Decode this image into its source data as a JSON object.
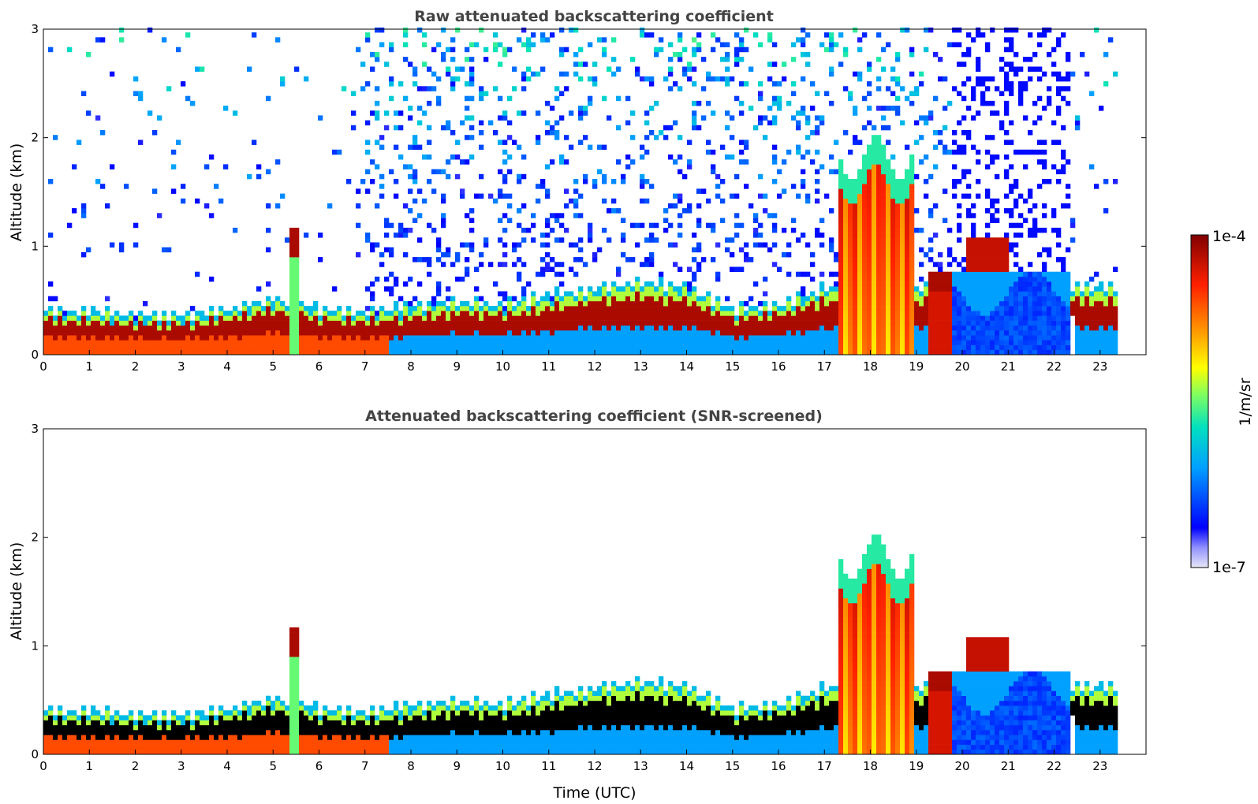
{
  "chart_data": [
    {
      "type": "heatmap",
      "title": "Raw attenuated backscattering coefficient",
      "xlabel": "",
      "ylabel": "Altitude (km)",
      "xlim": [
        0,
        24
      ],
      "ylim": [
        0,
        3
      ],
      "xticks": [
        "0",
        "1",
        "2",
        "3",
        "4",
        "5",
        "6",
        "7",
        "8",
        "9",
        "10",
        "11",
        "12",
        "13",
        "14",
        "15",
        "16",
        "17",
        "18",
        "19",
        "20",
        "21",
        "22",
        "23"
      ],
      "yticks": [
        "0",
        "1",
        "2",
        "3"
      ],
      "data_end_hour": 23.3,
      "screened": false
    },
    {
      "type": "heatmap",
      "title": "Attenuated backscattering coefficient (SNR-screened)",
      "xlabel": "Time (UTC)",
      "ylabel": "Altitude (km)",
      "xlim": [
        0,
        24
      ],
      "ylim": [
        0,
        3
      ],
      "xticks": [
        "0",
        "1",
        "2",
        "3",
        "4",
        "5",
        "6",
        "7",
        "8",
        "9",
        "10",
        "11",
        "12",
        "13",
        "14",
        "15",
        "16",
        "17",
        "18",
        "19",
        "20",
        "21",
        "22",
        "23"
      ],
      "yticks": [
        "0",
        "1",
        "2",
        "3"
      ],
      "data_end_hour": 23.3,
      "screened": true
    }
  ],
  "colorbar": {
    "label": "1/m/sr",
    "max_label": "1e-4",
    "min_label": "1e-7",
    "scale": "log",
    "colormap": [
      "#e8e8f8",
      "#0000ff",
      "#00a0ff",
      "#00e0c0",
      "#80ff60",
      "#ffff00",
      "#ff9000",
      "#ff2000",
      "#800000"
    ]
  },
  "features": [
    {
      "name": "boundary-layer-aerosol",
      "x": [
        0,
        1,
        2,
        3,
        4,
        5,
        6,
        7,
        8,
        9,
        10,
        11,
        12,
        13,
        14,
        15,
        16,
        17
      ],
      "top_km": [
        0.35,
        0.33,
        0.3,
        0.3,
        0.35,
        0.45,
        0.35,
        0.32,
        0.38,
        0.42,
        0.4,
        0.48,
        0.55,
        0.6,
        0.55,
        0.35,
        0.4,
        0.55
      ]
    },
    {
      "name": "plume-5.4h",
      "x_range": [
        5.3,
        5.55
      ],
      "alt_range_km": [
        0,
        1.15
      ]
    },
    {
      "name": "thick-cloud-17.5-18.8h",
      "x_range": [
        17.25,
        18.85
      ],
      "alt_range_km": [
        0,
        1.75
      ]
    },
    {
      "name": "elevated-layer-20-21h",
      "x_range": [
        20.0,
        21.0
      ],
      "alt_range_km": [
        0.7,
        1.05
      ]
    },
    {
      "name": "clear-gap-22.3h",
      "x_range": [
        22.3,
        22.45
      ],
      "alt_range_km": [
        0,
        0.3
      ]
    }
  ]
}
